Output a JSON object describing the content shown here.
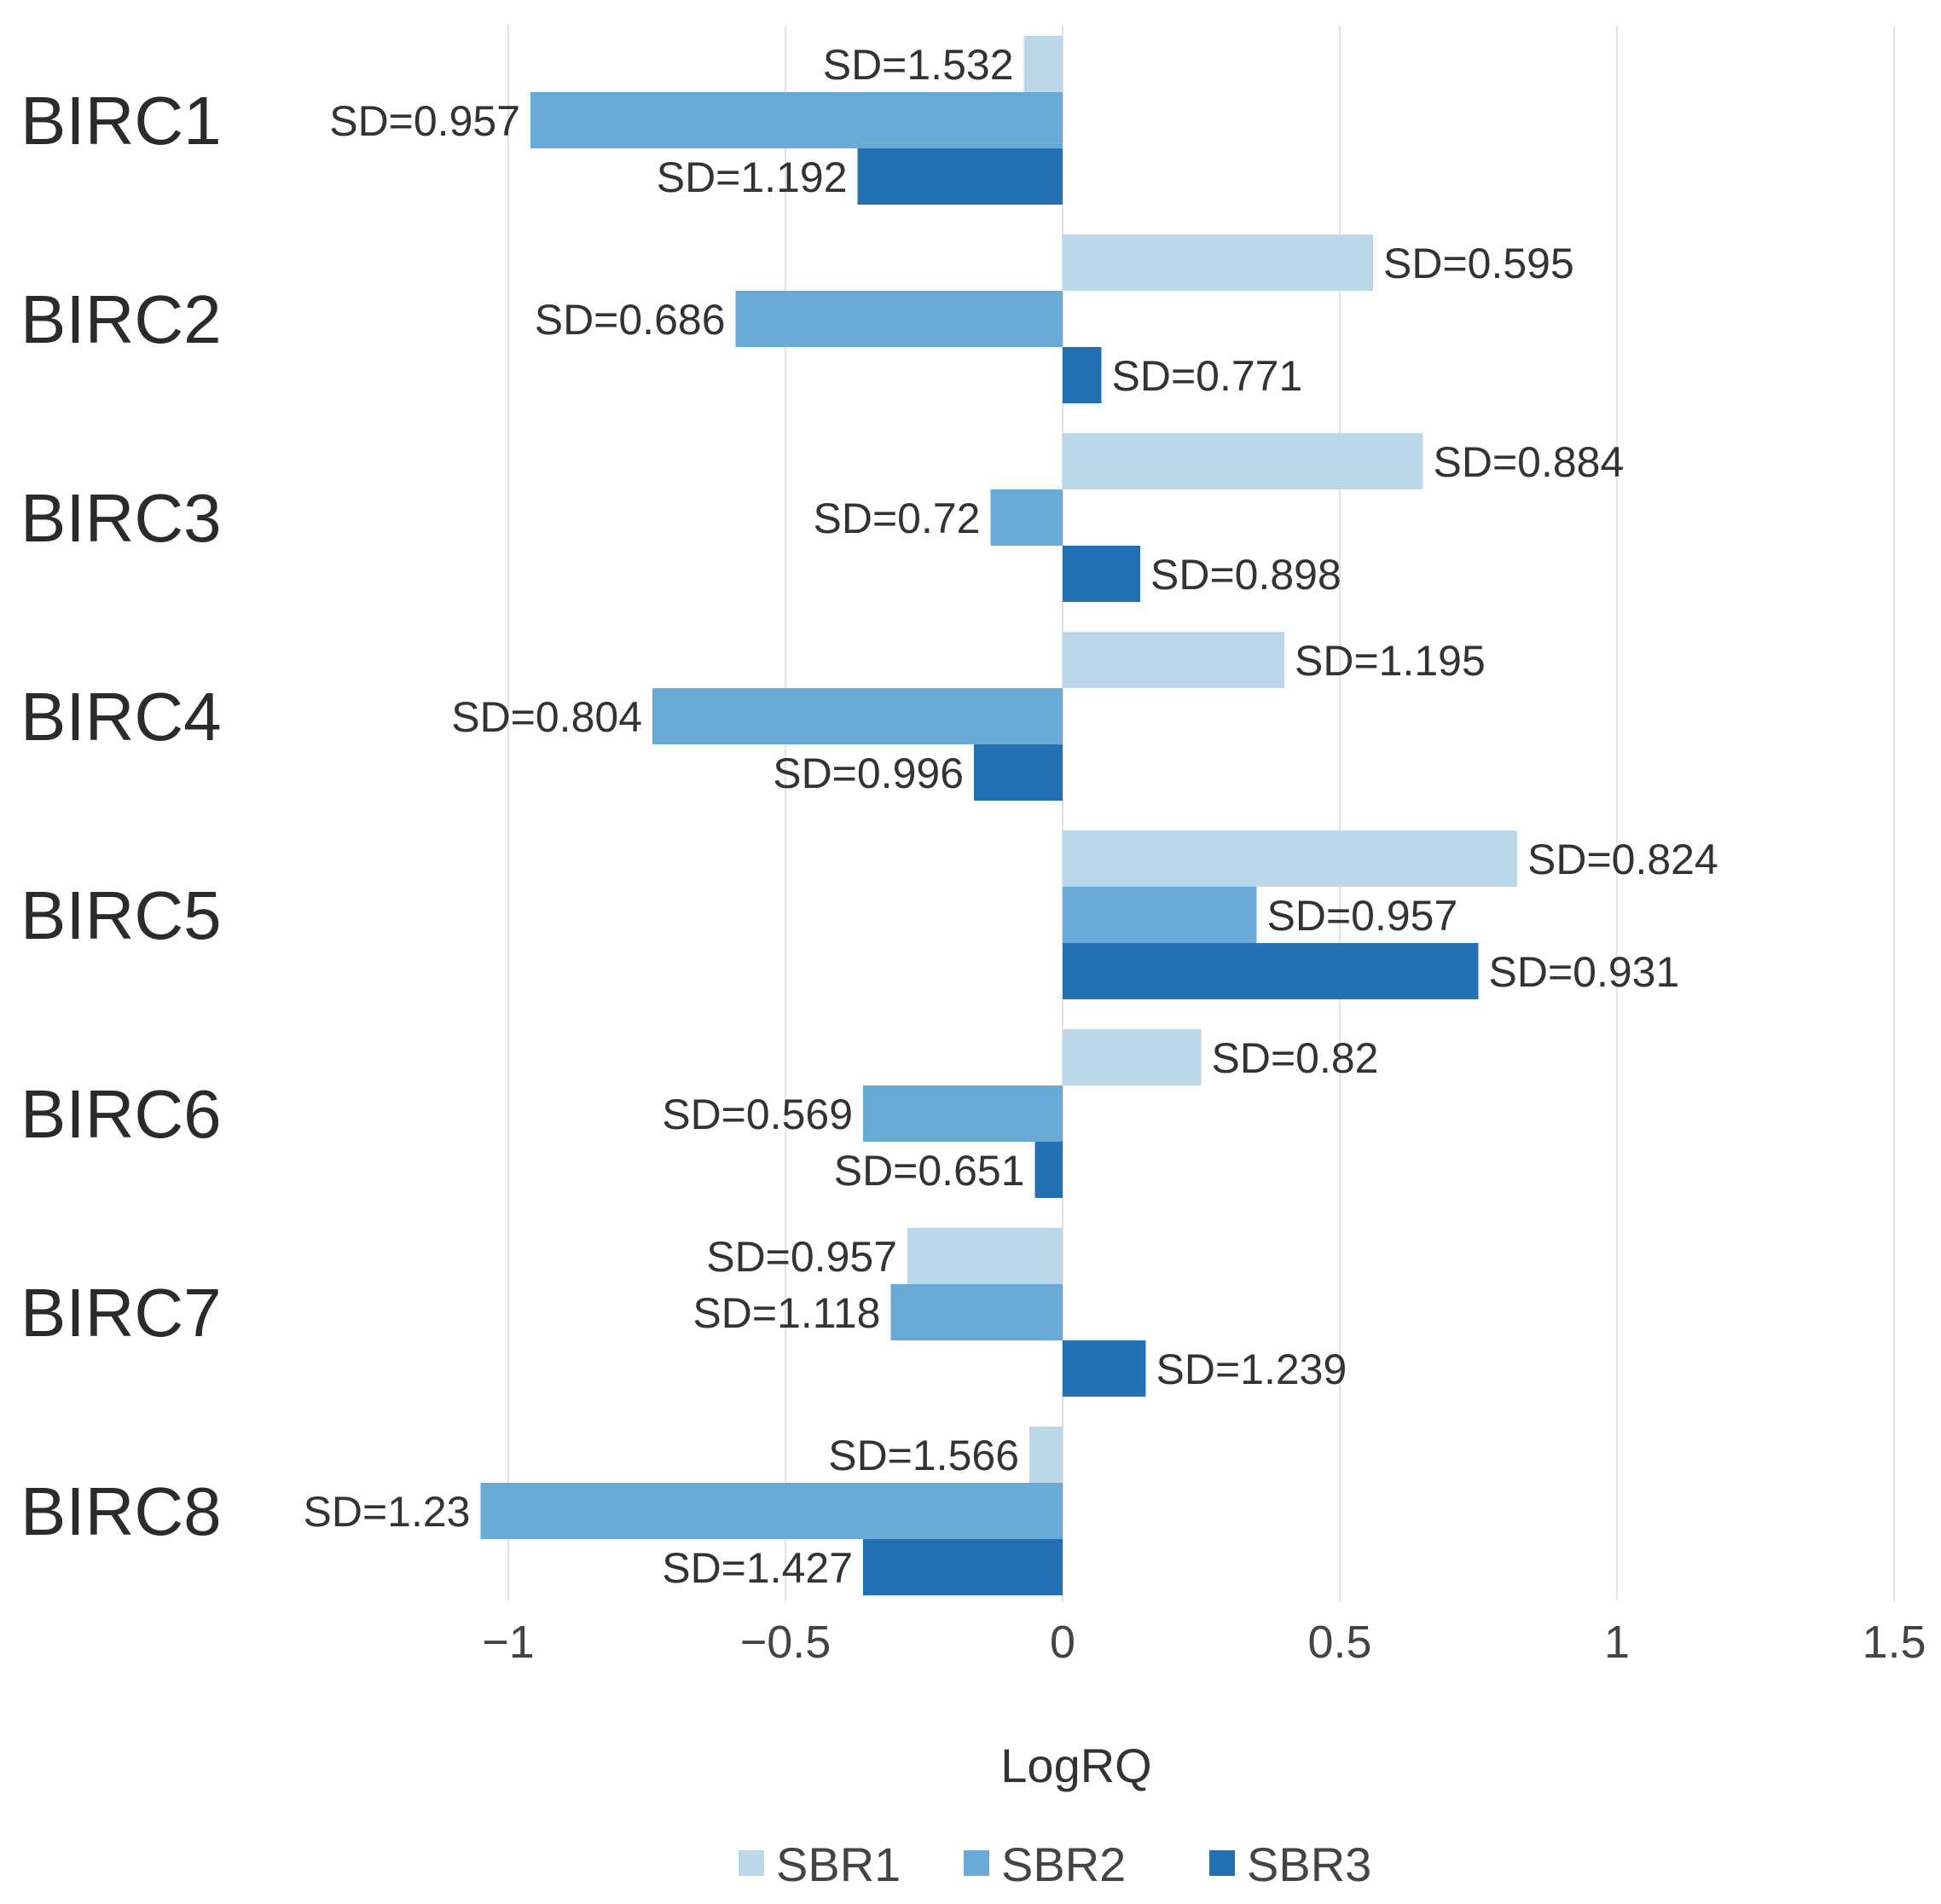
{
  "chart_data": {
    "type": "bar",
    "orientation": "horizontal",
    "title": "",
    "xlabel": "LogRQ",
    "ylabel": "",
    "xlim": [
      -1,
      1.5
    ],
    "xticks": [
      -1,
      -0.5,
      0,
      0.5,
      1,
      1.5
    ],
    "xtick_labels": [
      "−1",
      "−0.5",
      "0",
      "0.5",
      "1",
      "1.5"
    ],
    "grid": true,
    "legend_position": "bottom",
    "categories": [
      "BIRC1",
      "BIRC2",
      "BIRC3",
      "BIRC4",
      "BIRC5",
      "BIRC6",
      "BIRC7",
      "BIRC8"
    ],
    "series": [
      {
        "name": "SBR1",
        "color": "#bcd6ea",
        "values": [
          -0.07,
          0.56,
          0.65,
          0.4,
          0.82,
          0.25,
          -0.28,
          -0.06
        ],
        "labels": [
          "SD=1.532",
          "SD=0.595",
          "SD=0.884",
          "SD=1.195",
          "SD=0.824",
          "SD=0.82",
          "SD=0.957",
          "SD=1.566"
        ]
      },
      {
        "name": "SBR2",
        "color": "#6aaad6",
        "values": [
          -0.96,
          -0.59,
          -0.13,
          -0.74,
          0.35,
          -0.36,
          -0.31,
          -1.05
        ],
        "labels": [
          "SD=0.957",
          "SD=0.686",
          "SD=0.72",
          "SD=0.804",
          "SD=0.957",
          "SD=0.569",
          "SD=1.118",
          "SD=1.23"
        ]
      },
      {
        "name": "SBR3",
        "color": "#2470b4",
        "values": [
          -0.37,
          0.07,
          0.14,
          -0.16,
          0.75,
          -0.05,
          0.15,
          -0.36
        ],
        "labels": [
          "SD=1.192",
          "SD=0.771",
          "SD=0.898",
          "SD=0.996",
          "SD=0.931",
          "SD=0.651",
          "SD=1.239",
          "SD=1.427"
        ]
      }
    ]
  }
}
